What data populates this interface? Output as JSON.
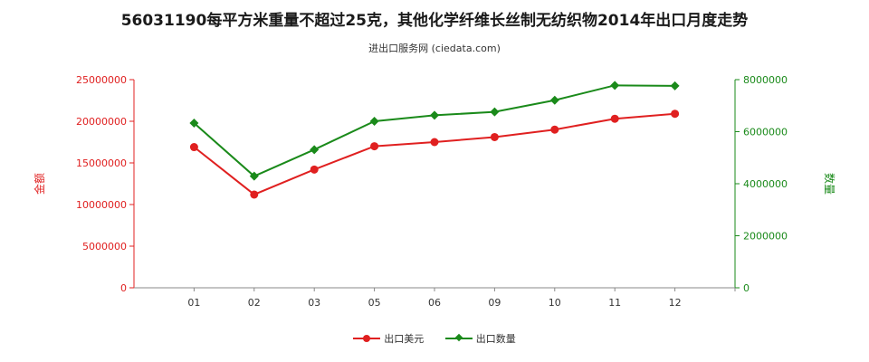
{
  "chart_data": {
    "type": "line",
    "title": "56031190每平方米重量不超过25克，其他化学纤维长丝制无纺织物2014年出口月度走势",
    "subtitle": "进出口服务网 (ciedata.com)",
    "categories": [
      "01",
      "02",
      "03",
      "05",
      "06",
      "09",
      "10",
      "11",
      "12"
    ],
    "left_axis": {
      "label": "金额",
      "color": "#e02020",
      "ylim": [
        0,
        25000000
      ],
      "ticks": [
        "0",
        "5000000",
        "10000000",
        "15000000",
        "20000000",
        "25000000"
      ]
    },
    "right_axis": {
      "label": "数量",
      "color": "#1a8a1a",
      "ylim": [
        0,
        8000000
      ],
      "ticks": [
        "0",
        "2000000",
        "4000000",
        "6000000",
        "8000000"
      ]
    },
    "series": [
      {
        "name": "出口美元",
        "axis": "left",
        "color": "#e02020",
        "marker": "circle",
        "values": [
          16900000,
          11200000,
          14200000,
          17000000,
          17500000,
          18100000,
          19000000,
          20300000,
          20900000
        ]
      },
      {
        "name": "出口数量",
        "axis": "right",
        "color": "#1a8a1a",
        "marker": "diamond",
        "values": [
          6330000,
          4290000,
          5310000,
          6400000,
          6630000,
          6760000,
          7210000,
          7780000,
          7760000
        ]
      }
    ],
    "legend_position": "bottom",
    "grid": false
  }
}
